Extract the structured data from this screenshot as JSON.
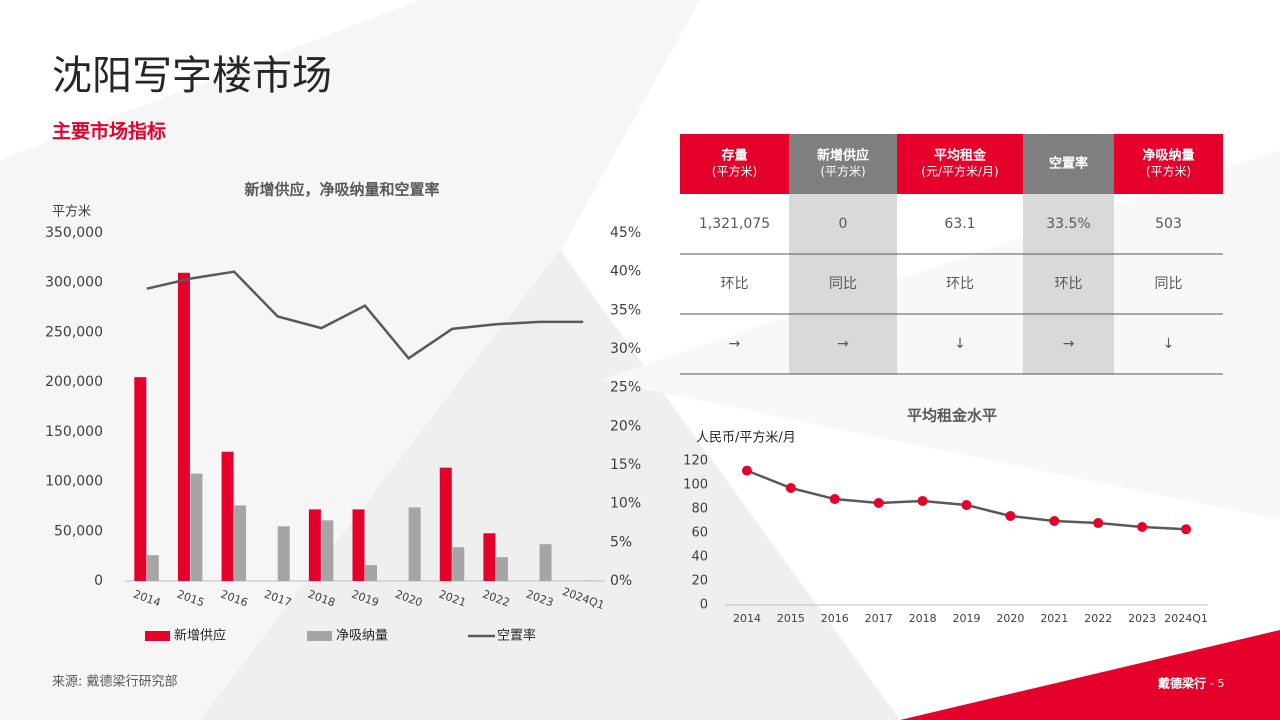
{
  "header": {
    "title": "沈阳写字楼市场",
    "subtitle": "主要市场指标"
  },
  "table": {
    "columns": [
      {
        "title": "存量",
        "unit": "(平方米)"
      },
      {
        "title": "新增供应",
        "unit": "(平方米)"
      },
      {
        "title": "平均租金",
        "unit": "(元/平方米/月)"
      },
      {
        "title": "空置率"
      },
      {
        "title": "净吸纳量",
        "unit": "(平方米)"
      }
    ],
    "rows": [
      [
        "1,321,075",
        "0",
        "63.1",
        "33.5%",
        "503"
      ],
      [
        "环比",
        "同比",
        "环比",
        "环比",
        "同比"
      ],
      [
        "→",
        "→",
        "↓",
        "→",
        "↓"
      ]
    ]
  },
  "chart_data": [
    {
      "type": "bar_line",
      "title": "新增供应，净吸纳量和空置率",
      "y_label": "平方米",
      "categories": [
        "2014",
        "2015",
        "2016",
        "2017",
        "2018",
        "2019",
        "2020",
        "2021",
        "2022",
        "2023",
        "2024Q1"
      ],
      "series": [
        {
          "name": "新增供应",
          "type": "bar",
          "color": "#e4002b",
          "values": [
            205000,
            310000,
            130000,
            0,
            72000,
            72000,
            0,
            114000,
            48000,
            0,
            0
          ]
        },
        {
          "name": "净吸纳量",
          "type": "bar",
          "color": "#a5a5a5",
          "values": [
            26000,
            108000,
            76000,
            55000,
            61000,
            16000,
            74000,
            34000,
            24000,
            37000,
            503
          ]
        },
        {
          "name": "空置率",
          "type": "line",
          "axis": "y2",
          "color": "#595959",
          "values": [
            37.8,
            39.1,
            40.0,
            34.2,
            32.7,
            35.6,
            28.8,
            32.6,
            33.2,
            33.5,
            33.5
          ]
        }
      ],
      "ylim": [
        0,
        350000
      ],
      "yticks": [
        0,
        {
          "value": 50000,
          "label": "50,000"
        },
        {
          "value": 100000,
          "label": "100,000"
        },
        {
          "value": 150000,
          "label": "150,000"
        },
        {
          "value": 200000,
          "label": "200,000"
        },
        {
          "value": 250000,
          "label": "250,000"
        },
        {
          "value": 300000,
          "label": "300,000"
        },
        {
          "value": 350000,
          "label": "350,000"
        }
      ],
      "y2lim": [
        0,
        45
      ],
      "y2ticks": [
        {
          "value": 0,
          "label": "0%"
        },
        {
          "value": 5,
          "label": "5%"
        },
        {
          "value": 10,
          "label": "10%"
        },
        {
          "value": 15,
          "label": "15%"
        },
        {
          "value": 20,
          "label": "20%"
        },
        {
          "value": 25,
          "label": "25%"
        },
        {
          "value": 30,
          "label": "30%"
        },
        {
          "value": 35,
          "label": "35%"
        },
        {
          "value": 40,
          "label": "40%"
        },
        {
          "value": 45,
          "label": "45%"
        }
      ],
      "legend": "bottom"
    },
    {
      "type": "line",
      "title": "平均租金水平",
      "y_label": "人民币/平方米/月",
      "categories": [
        "2014",
        "2015",
        "2016",
        "2017",
        "2018",
        "2019",
        "2020",
        "2021",
        "2022",
        "2023",
        "2024Q1"
      ],
      "values": [
        112,
        97.5,
        88.3,
        85,
        86.7,
        83.3,
        74.2,
        70,
        68.3,
        65,
        63.1
      ],
      "color": "#e4002b",
      "line_color": "#595959",
      "ylim": [
        0,
        120
      ],
      "yticks": [
        0,
        20,
        40,
        60,
        80,
        100,
        120
      ]
    }
  ],
  "footer": {
    "source": "来源: 戴德梁行研究部",
    "brand": "戴德梁行",
    "page": "- 5"
  }
}
